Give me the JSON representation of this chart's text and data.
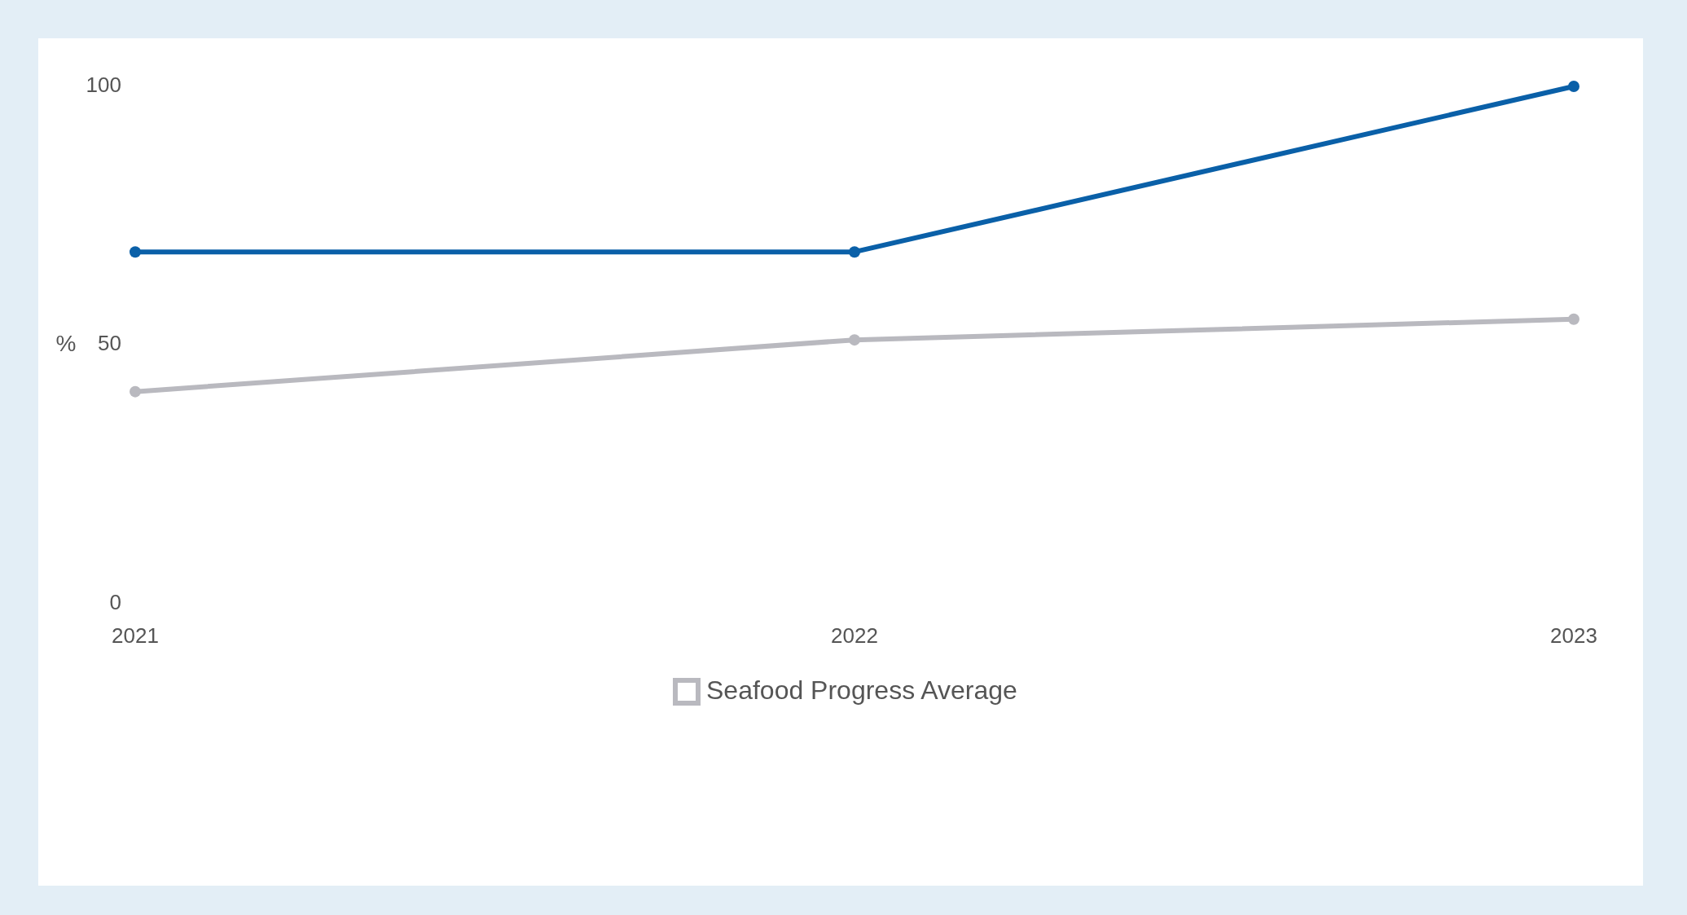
{
  "chart_data": {
    "type": "line",
    "ylabel": "%",
    "x": [
      2021,
      2022,
      2023
    ],
    "xlim": [
      2021,
      2023
    ],
    "xticks": [
      2021,
      2022,
      2023
    ],
    "ylim": [
      0,
      100
    ],
    "yticks": [
      0,
      50,
      100
    ],
    "grid": false,
    "legend": "bottom",
    "marker": "circle",
    "line_style": "solid",
    "series": [
      {
        "color": "#0a60a8",
        "values": [
          68,
          68,
          100
        ]
      },
      {
        "name": "Seafood Progress Average",
        "color": "#b9b9bf",
        "values": [
          41,
          51,
          55
        ]
      }
    ]
  }
}
